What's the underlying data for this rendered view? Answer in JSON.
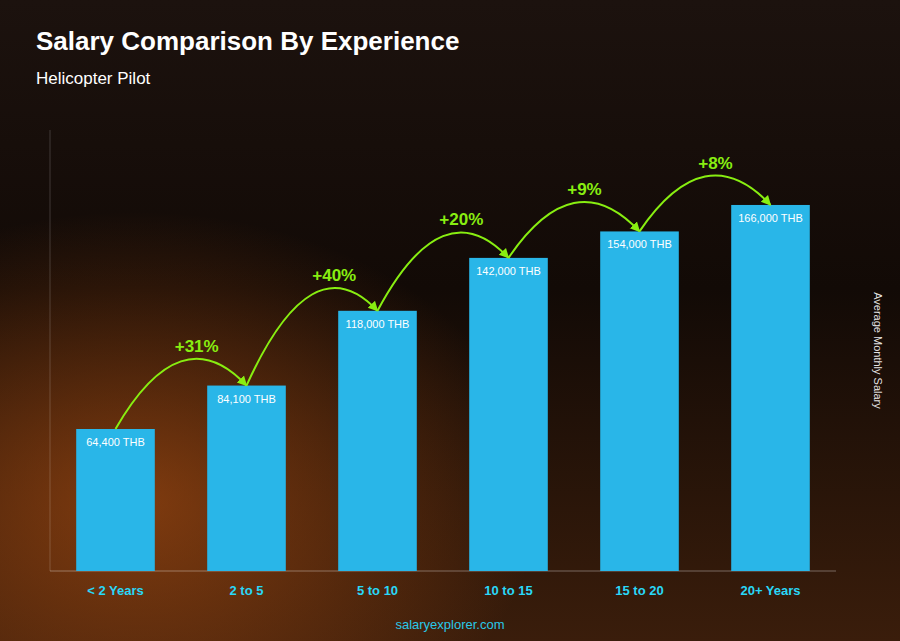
{
  "chart_data": {
    "type": "bar",
    "title": "Salary Comparison By Experience",
    "subtitle": "Helicopter Pilot",
    "ylabel": "Average Monthly Salary",
    "categories": [
      "< 2 Years",
      "2 to 5",
      "5 to 10",
      "10 to 15",
      "15 to 20",
      "20+ Years"
    ],
    "values": [
      64400,
      84100,
      118000,
      142000,
      154000,
      166000
    ],
    "value_labels": [
      "64,400 THB",
      "84,100 THB",
      "118,000 THB",
      "142,000 THB",
      "154,000 THB",
      "166,000 THB"
    ],
    "data_labels": true,
    "color": "#29B6E8",
    "ylim": [
      0,
      200000
    ],
    "tick_labels": "x",
    "annotations": [
      "+31%",
      "+40%",
      "+20%",
      "+9%",
      "+8%"
    ],
    "watermark": "salaryexplorer.com"
  }
}
